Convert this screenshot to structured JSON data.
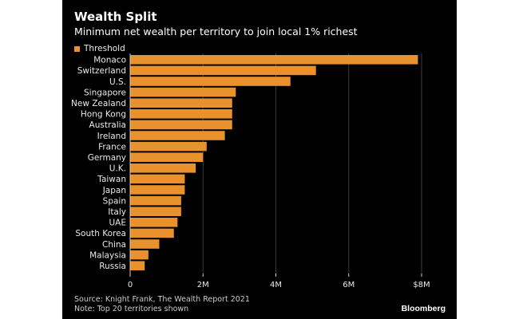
{
  "chart_data": {
    "type": "bar",
    "orientation": "horizontal",
    "title": "Wealth Split",
    "subtitle": "Minimum net wealth per territory to join local 1% richest",
    "legend": [
      "Threshold"
    ],
    "categories": [
      "Monaco",
      "Switzerland",
      "U.S.",
      "Singapore",
      "New Zealand",
      "Hong Kong",
      "Australia",
      "Ireland",
      "France",
      "Germany",
      "U.K.",
      "Taiwan",
      "Japan",
      "Spain",
      "Italy",
      "UAE",
      "South Korea",
      "China",
      "Malaysia",
      "Russia"
    ],
    "values": [
      7.9,
      5.1,
      4.4,
      2.9,
      2.8,
      2.8,
      2.8,
      2.6,
      2.1,
      2.0,
      1.8,
      1.5,
      1.5,
      1.4,
      1.4,
      1.3,
      1.2,
      0.8,
      0.5,
      0.4
    ],
    "value_unit": "$M",
    "xlim": [
      0,
      8
    ],
    "x_ticks": [
      0,
      2,
      4,
      6,
      8
    ],
    "x_tick_labels": [
      "0",
      "2M",
      "4M",
      "6M",
      "$8M"
    ],
    "bar_color": "#E8912D",
    "source": "Source: Knight Frank, The Wealth Report 2021",
    "note": "Note: Top 20 territories shown"
  },
  "branding": {
    "logo_text": "Bloomberg"
  }
}
